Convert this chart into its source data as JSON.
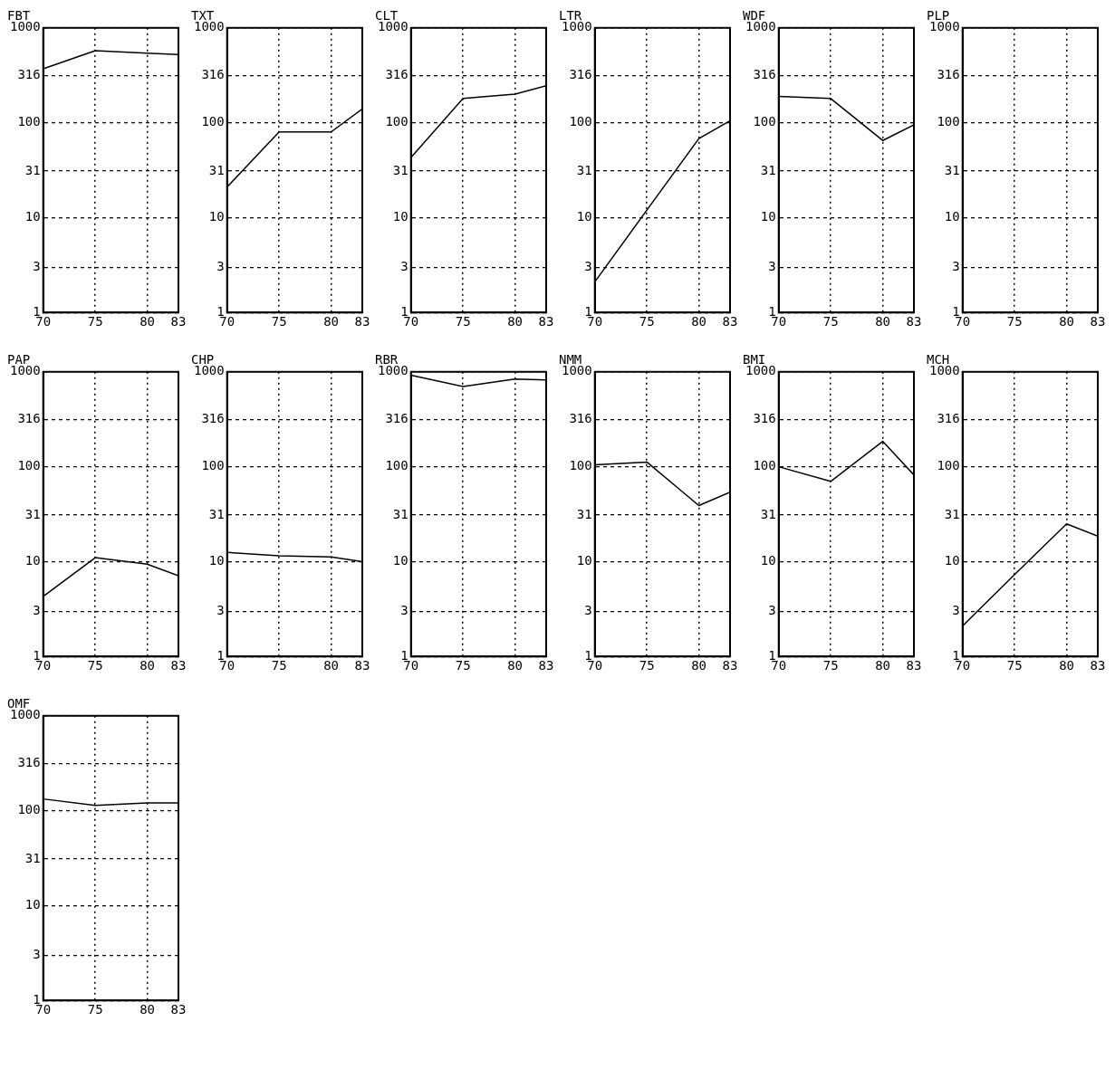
{
  "chart_data": [
    {
      "type": "line",
      "title": "FBT",
      "x": [
        70,
        75,
        80,
        83
      ],
      "values": [
        370,
        575,
        540,
        525
      ],
      "color": "#000000",
      "xlim": [
        70,
        83
      ],
      "xticks": [
        70,
        75,
        80,
        83
      ],
      "ylim": [
        1,
        1000
      ],
      "yticks": [
        1,
        3,
        10,
        31,
        100,
        316,
        1000
      ],
      "log": true,
      "grid": true,
      "marker": "none"
    },
    {
      "type": "line",
      "title": "TXT",
      "x": [
        70,
        75,
        80,
        83
      ],
      "values": [
        21,
        80,
        80,
        140
      ],
      "color": "#000000",
      "xlim": [
        70,
        83
      ],
      "xticks": [
        70,
        75,
        80,
        83
      ],
      "ylim": [
        1,
        1000
      ],
      "yticks": [
        1,
        3,
        10,
        31,
        100,
        316,
        1000
      ],
      "log": true,
      "grid": true,
      "marker": "none"
    },
    {
      "type": "line",
      "title": "CLT",
      "x": [
        70,
        75,
        80,
        83
      ],
      "values": [
        43,
        180,
        200,
        245
      ],
      "color": "#000000",
      "xlim": [
        70,
        83
      ],
      "xticks": [
        70,
        75,
        80,
        83
      ],
      "ylim": [
        1,
        1000
      ],
      "yticks": [
        1,
        3,
        10,
        31,
        100,
        316,
        1000
      ],
      "log": true,
      "grid": true,
      "marker": "none"
    },
    {
      "type": "line",
      "title": "LTR",
      "x": [
        70,
        75,
        80,
        83
      ],
      "values": [
        2.1,
        12,
        68,
        105
      ],
      "color": "#000000",
      "xlim": [
        70,
        83
      ],
      "xticks": [
        70,
        75,
        80,
        83
      ],
      "ylim": [
        1,
        1000
      ],
      "yticks": [
        1,
        3,
        10,
        31,
        100,
        316,
        1000
      ],
      "log": true,
      "grid": true,
      "marker": "none"
    },
    {
      "type": "line",
      "title": "WDF",
      "x": [
        70,
        75,
        80,
        83
      ],
      "values": [
        190,
        180,
        65,
        95
      ],
      "color": "#000000",
      "xlim": [
        70,
        83
      ],
      "xticks": [
        70,
        75,
        80,
        83
      ],
      "ylim": [
        1,
        1000
      ],
      "yticks": [
        1,
        3,
        10,
        31,
        100,
        316,
        1000
      ],
      "log": true,
      "grid": true,
      "marker": "none"
    },
    {
      "type": "line",
      "title": "PLP",
      "xlim": [
        70,
        83
      ],
      "xticks": [
        70,
        75,
        80,
        83
      ],
      "ylim": [
        1,
        1000
      ],
      "yticks": [
        1,
        3,
        10,
        31,
        100,
        316,
        1000
      ],
      "log": true,
      "grid": true
    },
    {
      "type": "line",
      "title": "PAP",
      "x": [
        70,
        75,
        80,
        83
      ],
      "values": [
        4.3,
        11,
        9.4,
        7.1
      ],
      "color": "#000000",
      "xlim": [
        70,
        83
      ],
      "xticks": [
        70,
        75,
        80,
        83
      ],
      "ylim": [
        1,
        1000
      ],
      "yticks": [
        1,
        3,
        10,
        31,
        100,
        316,
        1000
      ],
      "log": true,
      "grid": true,
      "marker": "none"
    },
    {
      "type": "line",
      "title": "CHP",
      "x": [
        70,
        75,
        80,
        83
      ],
      "values": [
        12.5,
        11.5,
        11.2,
        10
      ],
      "color": "#000000",
      "xlim": [
        70,
        83
      ],
      "xticks": [
        70,
        75,
        80,
        83
      ],
      "ylim": [
        1,
        1000
      ],
      "yticks": [
        1,
        3,
        10,
        31,
        100,
        316,
        1000
      ],
      "log": true,
      "grid": true,
      "marker": "none"
    },
    {
      "type": "line",
      "title": "RBR",
      "x": [
        70,
        75,
        80,
        83
      ],
      "values": [
        920,
        700,
        840,
        820
      ],
      "color": "#000000",
      "xlim": [
        70,
        83
      ],
      "xticks": [
        70,
        75,
        80,
        83
      ],
      "ylim": [
        1,
        1000
      ],
      "yticks": [
        1,
        3,
        10,
        31,
        100,
        316,
        1000
      ],
      "log": true,
      "grid": true,
      "marker": "none"
    },
    {
      "type": "line",
      "title": "NMM",
      "x": [
        70,
        75,
        80,
        83
      ],
      "values": [
        105,
        112,
        39,
        54
      ],
      "color": "#000000",
      "xlim": [
        70,
        83
      ],
      "xticks": [
        70,
        75,
        80,
        83
      ],
      "ylim": [
        1,
        1000
      ],
      "yticks": [
        1,
        3,
        10,
        31,
        100,
        316,
        1000
      ],
      "log": true,
      "grid": true,
      "marker": "none"
    },
    {
      "type": "line",
      "title": "BMI",
      "x": [
        70,
        75,
        80,
        83
      ],
      "values": [
        100,
        70,
        185,
        82
      ],
      "color": "#000000",
      "xlim": [
        70,
        83
      ],
      "xticks": [
        70,
        75,
        80,
        83
      ],
      "ylim": [
        1,
        1000
      ],
      "yticks": [
        1,
        3,
        10,
        31,
        100,
        316,
        1000
      ],
      "log": true,
      "grid": true,
      "marker": "none"
    },
    {
      "type": "line",
      "title": "MCH",
      "x": [
        70,
        75,
        80,
        83
      ],
      "values": [
        2.1,
        7.3,
        25,
        18.5
      ],
      "color": "#000000",
      "xlim": [
        70,
        83
      ],
      "xticks": [
        70,
        75,
        80,
        83
      ],
      "ylim": [
        1,
        1000
      ],
      "yticks": [
        1,
        3,
        10,
        31,
        100,
        316,
        1000
      ],
      "log": true,
      "grid": true,
      "marker": "none"
    },
    {
      "type": "line",
      "title": "OMF",
      "x": [
        70,
        75,
        80,
        83
      ],
      "values": [
        133,
        114,
        121,
        121
      ],
      "color": "#000000",
      "xlim": [
        70,
        83
      ],
      "xticks": [
        70,
        75,
        80,
        83
      ],
      "ylim": [
        1,
        1000
      ],
      "yticks": [
        1,
        3,
        10,
        31,
        100,
        316,
        1000
      ],
      "log": true,
      "grid": true,
      "marker": "none"
    }
  ]
}
